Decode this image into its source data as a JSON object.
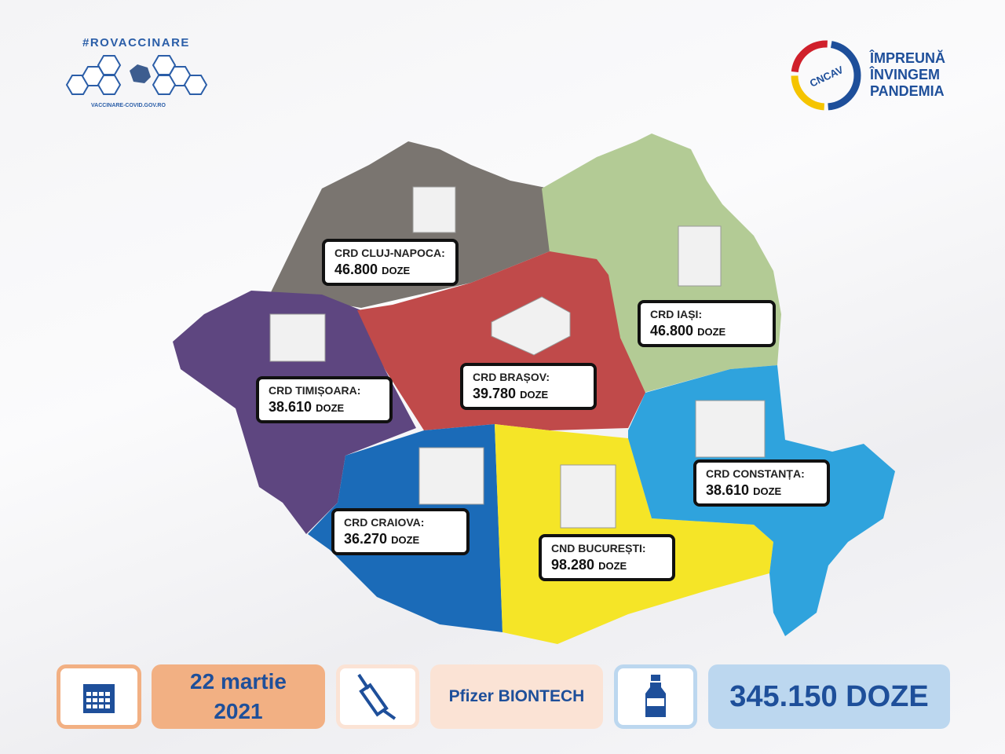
{
  "header": {
    "hashtag": "#ROVACCINARE",
    "site": "VACCINARE-COVID.GOV.RO",
    "logo_text": "CNCAV",
    "slogan": [
      "ÎMPREUNĂ",
      "ÎNVINGEM",
      "PANDEMIA"
    ]
  },
  "regions": [
    {
      "name": "CRD CLUJ-NAPOCA:",
      "doses": "46.800",
      "unit": "DOZE",
      "color": "#7a7570"
    },
    {
      "name": "CRD IAȘI:",
      "doses": "46.800",
      "unit": "DOZE",
      "color": "#b3cb95"
    },
    {
      "name": "CRD TIMIȘOARA:",
      "doses": "38.610",
      "unit": "DOZE",
      "color": "#5e4680"
    },
    {
      "name": "CRD BRAȘOV:",
      "doses": "39.780",
      "unit": "DOZE",
      "color": "#c04a4a"
    },
    {
      "name": "CRD CONSTANȚA:",
      "doses": "38.610",
      "unit": "DOZE",
      "color": "#2fa3dd"
    },
    {
      "name": "CRD CRAIOVA:",
      "doses": "36.270",
      "unit": "DOZE",
      "color": "#1b6bb8"
    },
    {
      "name": "CND BUCUREȘTI:",
      "doses": "98.280",
      "unit": "DOZE",
      "color": "#f5e527"
    }
  ],
  "footer": {
    "date_line1": "22 martie",
    "date_line2": "2021",
    "vaccine": "Pfizer BIONTECH",
    "total": "345.150 DOZE",
    "icons": [
      "calendar-icon",
      "syringe-icon",
      "vial-icon"
    ]
  }
}
